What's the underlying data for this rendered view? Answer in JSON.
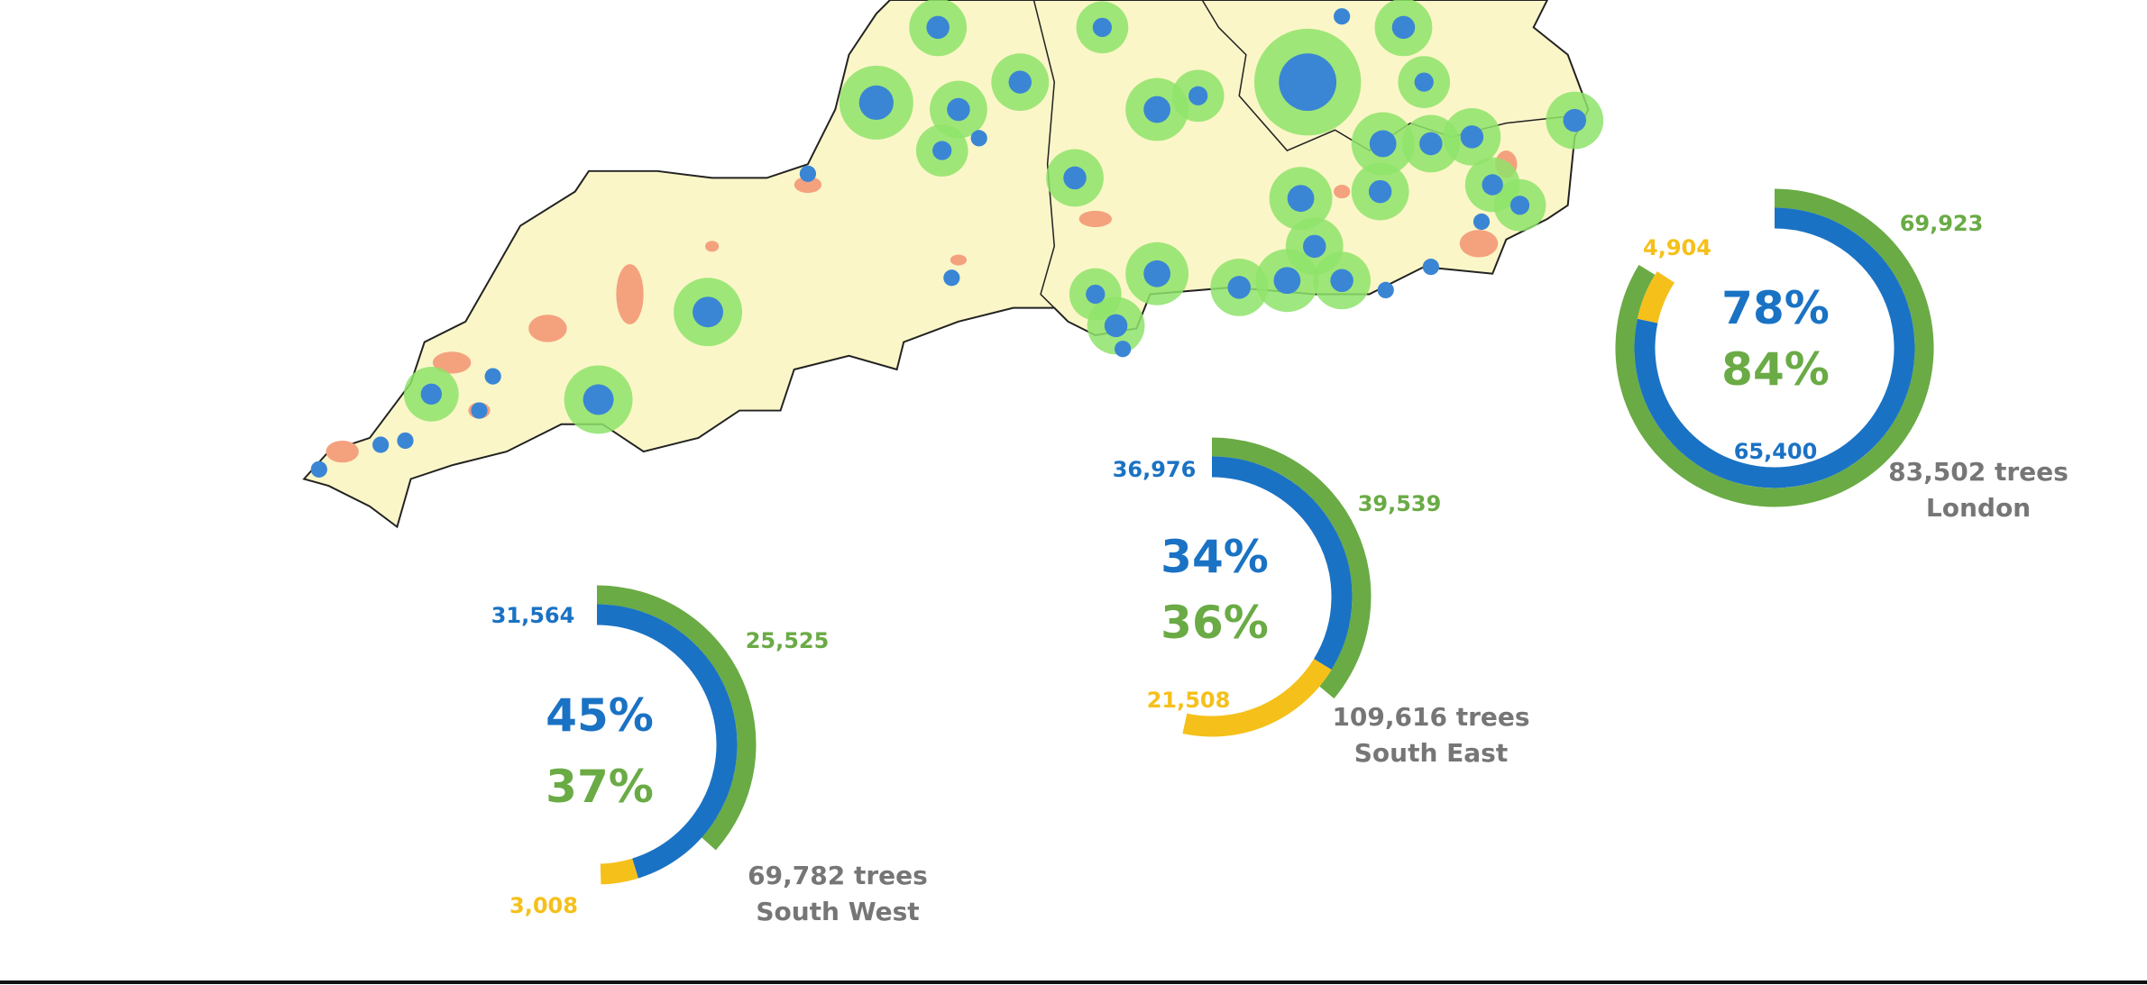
{
  "colors": {
    "planted": "#1a72c4",
    "surviving": "#6aab45",
    "lost": "#f5c01a",
    "total_text": "#767676",
    "map_land": "#fbf6c8",
    "map_urban": "#f4a27e",
    "map_buffer": "#8ee36a",
    "map_site": "#3a86d4"
  },
  "chart_data": [
    {
      "type": "donut",
      "region": "London",
      "total_label": "83,502 trees",
      "total": 83502,
      "blue_value": 65400,
      "blue_label": "65,400",
      "blue_pct": "78%",
      "green_value": 69923,
      "green_label": "69,923",
      "green_pct": "84%",
      "yellow_value": 4904,
      "yellow_label": "4,904"
    },
    {
      "type": "donut",
      "region": "South East",
      "total_label": "109,616 trees",
      "total": 109616,
      "blue_value": 36976,
      "blue_label": "36,976",
      "blue_pct": "34%",
      "green_value": 39539,
      "green_label": "39,539",
      "green_pct": "36%",
      "yellow_value": 21508,
      "yellow_label": "21,508"
    },
    {
      "type": "donut",
      "region": "South West",
      "total_label": "69,782 trees",
      "total": 69782,
      "blue_value": 31564,
      "blue_label": "31,564",
      "blue_pct": "45%",
      "green_value": 25525,
      "green_label": "25,525",
      "green_pct": "37%",
      "yellow_value": 3008,
      "yellow_label": "3,008"
    }
  ]
}
